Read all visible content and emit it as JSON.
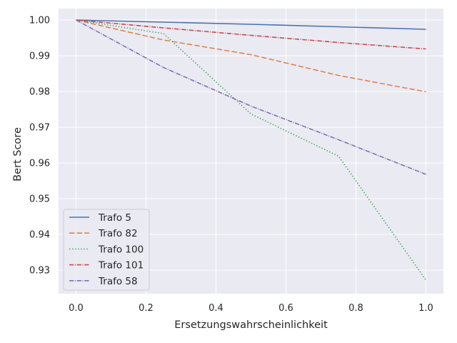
{
  "chart_data": {
    "type": "line",
    "title": "",
    "xlabel": "Ersetzungswahrscheinlichkeit",
    "ylabel": "Bert Score",
    "xlim": [
      -0.05,
      1.05
    ],
    "ylim": [
      0.9234,
      1.0032
    ],
    "xticks": [
      0.0,
      0.2,
      0.4,
      0.6,
      0.8,
      1.0
    ],
    "xtick_labels": [
      "0.0",
      "0.2",
      "0.4",
      "0.6",
      "0.8",
      "1.0"
    ],
    "yticks": [
      0.93,
      0.94,
      0.95,
      0.96,
      0.97,
      0.98,
      0.99,
      1.0
    ],
    "ytick_labels": [
      "0.93",
      "0.94",
      "0.95",
      "0.96",
      "0.97",
      "0.98",
      "0.99",
      "1.00"
    ],
    "grid": true,
    "legend_position": "lower-left",
    "series": [
      {
        "name": "Trafo 5",
        "color": "#4c72b0",
        "dash": "solid",
        "x": [
          0,
          0.25,
          0.5,
          0.75,
          1.0
        ],
        "y": [
          1.0,
          0.9994,
          0.9988,
          0.9981,
          0.9974
        ]
      },
      {
        "name": "Trafo 82",
        "color": "#dd8452",
        "dash": "dashed",
        "x": [
          0,
          0.25,
          0.5,
          0.75,
          1.0
        ],
        "y": [
          1.0,
          0.9944,
          0.9903,
          0.9845,
          0.9799
        ]
      },
      {
        "name": "Trafo 100",
        "color": "#55a868",
        "dash": "dotted",
        "x": [
          0,
          0.25,
          0.5,
          0.75,
          1.0
        ],
        "y": [
          1.0,
          0.9962,
          0.9737,
          0.9619,
          0.9272
        ]
      },
      {
        "name": "Trafo 101",
        "color": "#c44e52",
        "dash": "dashdot",
        "x": [
          0,
          0.25,
          0.5,
          0.75,
          1.0
        ],
        "y": [
          1.0,
          0.9978,
          0.9957,
          0.9937,
          0.9919
        ]
      },
      {
        "name": "Trafo 58",
        "color": "#8172b3",
        "dash": "dashdot",
        "x": [
          0,
          0.25,
          0.5,
          0.75,
          1.0
        ],
        "y": [
          1.0,
          0.9867,
          0.9759,
          0.9665,
          0.9568
        ]
      }
    ]
  }
}
